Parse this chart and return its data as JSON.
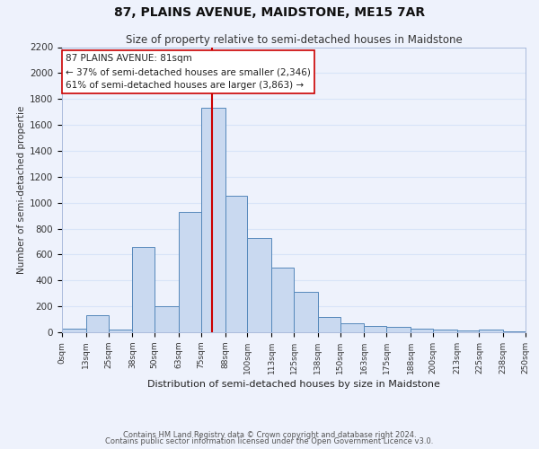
{
  "title1": "87, PLAINS AVENUE, MAIDSTONE, ME15 7AR",
  "title2": "Size of property relative to semi-detached houses in Maidstone",
  "xlabel": "Distribution of semi-detached houses by size in Maidstone",
  "ylabel": "Number of semi-detached propertie",
  "footer1": "Contains HM Land Registry data © Crown copyright and database right 2024.",
  "footer2": "Contains public sector information licensed under the Open Government Licence v3.0.",
  "annotation_title": "87 PLAINS AVENUE: 81sqm",
  "annotation_line1": "← 37% of semi-detached houses are smaller (2,346)",
  "annotation_line2": "61% of semi-detached houses are larger (3,863) →",
  "property_size": 81,
  "bar_edges": [
    0,
    13,
    25,
    38,
    50,
    63,
    75,
    88,
    100,
    113,
    125,
    138,
    150,
    163,
    175,
    188,
    200,
    213,
    225,
    238,
    250
  ],
  "bar_heights": [
    25,
    130,
    20,
    660,
    200,
    930,
    1730,
    1050,
    730,
    500,
    310,
    120,
    70,
    50,
    40,
    25,
    20,
    15,
    20,
    10
  ],
  "bar_color": "#c9d9f0",
  "bar_edge_color": "#5588bb",
  "vline_color": "#cc0000",
  "vline_x": 81,
  "ylim": [
    0,
    2200
  ],
  "yticks": [
    0,
    200,
    400,
    600,
    800,
    1000,
    1200,
    1400,
    1600,
    1800,
    2000,
    2200
  ],
  "grid_color": "#d8e4f8",
  "bg_color": "#eef2fc",
  "annotation_box_color": "#ffffff",
  "annotation_box_edge": "#cc0000",
  "tick_labels": [
    "0sqm",
    "13sqm",
    "25sqm",
    "38sqm",
    "50sqm",
    "63sqm",
    "75sqm",
    "88sqm",
    "100sqm",
    "113sqm",
    "125sqm",
    "138sqm",
    "150sqm",
    "163sqm",
    "175sqm",
    "188sqm",
    "200sqm",
    "213sqm",
    "225sqm",
    "238sqm",
    "250sqm"
  ]
}
